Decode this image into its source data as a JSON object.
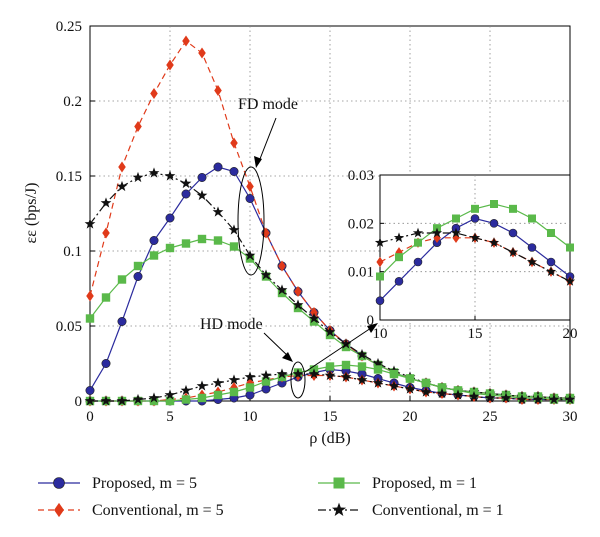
{
  "chart_data": {
    "type": "line",
    "xlabel": "ρ (dB)",
    "ylabel": "εε (bps/J)",
    "xlim": [
      0,
      30
    ],
    "ylim": [
      0,
      0.25
    ],
    "xticks": [
      0,
      5,
      10,
      15,
      20,
      25,
      30
    ],
    "yticks": [
      0,
      0.05,
      0.1,
      0.15,
      0.2,
      0.25
    ],
    "ytick_labels": [
      "0",
      "0.05",
      "0.1",
      "0.15",
      "0.2",
      "0.25"
    ],
    "grid": true,
    "legend_position": "bottom",
    "x": [
      0,
      1,
      2,
      3,
      4,
      5,
      6,
      7,
      8,
      9,
      10,
      11,
      12,
      13,
      14,
      15,
      16,
      17,
      18,
      19,
      20,
      21,
      22,
      23,
      24,
      25,
      26,
      27,
      28,
      29,
      30
    ],
    "series": [
      {
        "name": "Proposed, m = 5",
        "mode": "FD",
        "color": "#2b2b9e",
        "marker": "circle",
        "dash": "solid",
        "values": [
          0.007,
          0.025,
          0.053,
          0.083,
          0.107,
          0.122,
          0.138,
          0.149,
          0.156,
          0.153,
          0.135,
          0.112,
          0.09,
          0.073,
          0.059,
          0.047,
          0.038,
          0.03,
          0.024,
          0.019,
          0.015,
          0.012,
          0.009,
          0.007,
          0.006,
          0.005,
          0.004,
          0.003,
          0.003,
          0.002,
          0.002
        ]
      },
      {
        "name": "Conventional, m = 5",
        "mode": "FD",
        "color": "#e03a1a",
        "marker": "diamond",
        "dash": "dashed",
        "values": [
          0.07,
          0.112,
          0.156,
          0.183,
          0.205,
          0.224,
          0.24,
          0.232,
          0.207,
          0.172,
          0.143,
          0.112,
          0.09,
          0.073,
          0.059,
          0.047,
          0.038,
          0.03,
          0.024,
          0.019,
          0.015,
          0.012,
          0.009,
          0.007,
          0.006,
          0.005,
          0.004,
          0.003,
          0.003,
          0.002,
          0.002
        ]
      },
      {
        "name": "Proposed, m = 1",
        "mode": "FD",
        "color": "#5ab94a",
        "marker": "square",
        "dash": "solid",
        "values": [
          0.055,
          0.069,
          0.081,
          0.09,
          0.097,
          0.102,
          0.105,
          0.108,
          0.107,
          0.103,
          0.095,
          0.083,
          0.072,
          0.062,
          0.053,
          0.044,
          0.036,
          0.03,
          0.024,
          0.019,
          0.015,
          0.012,
          0.009,
          0.007,
          0.006,
          0.005,
          0.004,
          0.003,
          0.003,
          0.002,
          0.002
        ]
      },
      {
        "name": "Conventional, m = 1",
        "mode": "FD",
        "color": "#111111",
        "marker": "star",
        "dash": "dashdot",
        "values": [
          0.118,
          0.132,
          0.143,
          0.149,
          0.152,
          0.15,
          0.145,
          0.137,
          0.126,
          0.114,
          0.097,
          0.084,
          0.074,
          0.064,
          0.055,
          0.046,
          0.038,
          0.031,
          0.025,
          0.02,
          0.016,
          0.012,
          0.009,
          0.007,
          0.006,
          0.005,
          0.004,
          0.003,
          0.003,
          0.002,
          0.002
        ]
      },
      {
        "name": "Proposed, m = 5",
        "mode": "HD",
        "color": "#2b2b9e",
        "marker": "circle",
        "dash": "solid",
        "values": [
          0.0,
          0.0,
          0.0,
          0.0,
          0.0,
          0.0,
          0.0,
          0.0,
          0.001,
          0.002,
          0.004,
          0.008,
          0.012,
          0.016,
          0.019,
          0.021,
          0.02,
          0.018,
          0.015,
          0.012,
          0.009,
          0.007,
          0.005,
          0.004,
          0.003,
          0.002,
          0.002,
          0.001,
          0.001,
          0.001,
          0.001
        ]
      },
      {
        "name": "Conventional, m = 5",
        "mode": "HD",
        "color": "#e03a1a",
        "marker": "diamond",
        "dash": "dashed",
        "values": [
          0.0,
          0.0,
          0.0,
          0.0,
          0.0,
          0.001,
          0.002,
          0.004,
          0.006,
          0.009,
          0.012,
          0.014,
          0.016,
          0.017,
          0.017,
          0.017,
          0.016,
          0.014,
          0.012,
          0.01,
          0.008,
          0.006,
          0.005,
          0.004,
          0.003,
          0.002,
          0.002,
          0.001,
          0.001,
          0.001,
          0.001
        ]
      },
      {
        "name": "Proposed, m = 1",
        "mode": "HD",
        "color": "#5ab94a",
        "marker": "square",
        "dash": "solid",
        "values": [
          0.0,
          0.0,
          0.0,
          0.0,
          0.0,
          0.0,
          0.001,
          0.002,
          0.004,
          0.006,
          0.009,
          0.013,
          0.016,
          0.019,
          0.021,
          0.023,
          0.024,
          0.023,
          0.021,
          0.018,
          0.015,
          0.012,
          0.009,
          0.007,
          0.005,
          0.004,
          0.003,
          0.002,
          0.002,
          0.001,
          0.001
        ]
      },
      {
        "name": "Conventional, m = 1",
        "mode": "HD",
        "color": "#111111",
        "marker": "star",
        "dash": "dashdot",
        "values": [
          0.0,
          0.0,
          0.0,
          0.001,
          0.002,
          0.004,
          0.007,
          0.01,
          0.012,
          0.014,
          0.016,
          0.017,
          0.018,
          0.018,
          0.018,
          0.017,
          0.016,
          0.014,
          0.012,
          0.01,
          0.008,
          0.006,
          0.005,
          0.004,
          0.003,
          0.002,
          0.002,
          0.001,
          0.001,
          0.001,
          0.001
        ]
      }
    ],
    "annotations": [
      {
        "text": "FD mode",
        "target_x": 10.5,
        "target_y": 0.11
      },
      {
        "text": "HD mode",
        "target_x": 13,
        "target_y": 0.018
      }
    ],
    "inset": {
      "xlim": [
        10,
        20
      ],
      "ylim": [
        0,
        0.03
      ],
      "xticks": [
        10,
        15,
        20
      ],
      "yticks": [
        0,
        0.01,
        0.02,
        0.03
      ],
      "ytick_labels": [
        "0",
        "0.01",
        "0.02",
        "0.03"
      ],
      "grid": true,
      "source_mode": "HD"
    }
  }
}
